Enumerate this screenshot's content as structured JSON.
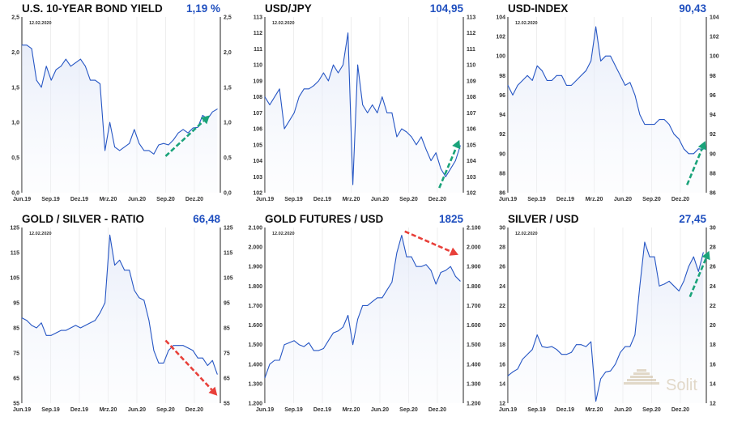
{
  "chart_data": [
    {
      "type": "line",
      "title": "U.S. 10-YEAR BOND YIELD",
      "value_label": "1,19 %",
      "date_label": "12.02.2020",
      "ylim": [
        0,
        2.5
      ],
      "ystep": 0.5,
      "ydecimals": 1,
      "ythousands": false,
      "xticks": [
        {
          "m": 0,
          "label": "Jun.19"
        },
        {
          "m": 3,
          "label": "Sep.19"
        },
        {
          "m": 6,
          "label": "Dez.19"
        },
        {
          "m": 9,
          "label": "Mrz.20"
        },
        {
          "m": 12,
          "label": "Jun.20"
        },
        {
          "m": 15,
          "label": "Sep.20"
        },
        {
          "m": 18,
          "label": "Dez.20"
        }
      ],
      "values": [
        2.1,
        2.1,
        2.05,
        1.6,
        1.5,
        1.8,
        1.6,
        1.75,
        1.8,
        1.9,
        1.8,
        1.85,
        1.9,
        1.8,
        1.6,
        1.6,
        1.55,
        0.6,
        1.0,
        0.65,
        0.6,
        0.65,
        0.7,
        0.9,
        0.7,
        0.6,
        0.6,
        0.55,
        0.68,
        0.7,
        0.68,
        0.75,
        0.85,
        0.9,
        0.85,
        0.92,
        0.93,
        1.1,
        1.05,
        1.15,
        1.19
      ],
      "arrow": {
        "color": "#1aa37a",
        "from": [
          15,
          0.52
        ],
        "to": [
          19.6,
          1.1
        ]
      }
    },
    {
      "type": "line",
      "title": "USD/JPY",
      "value_label": "104,95",
      "date_label": "12.02.2020",
      "ylim": [
        102,
        113
      ],
      "ystep": 1,
      "ydecimals": 0,
      "ythousands": false,
      "xticks": [
        {
          "m": 0,
          "label": "Jun.19"
        },
        {
          "m": 3,
          "label": "Sep.19"
        },
        {
          "m": 6,
          "label": "Dez.19"
        },
        {
          "m": 9,
          "label": "Mrz.20"
        },
        {
          "m": 12,
          "label": "Jun.20"
        },
        {
          "m": 15,
          "label": "Sep.20"
        },
        {
          "m": 18,
          "label": "Dez.20"
        }
      ],
      "values": [
        108,
        107.5,
        108,
        108.5,
        106,
        106.5,
        107,
        108,
        108.5,
        108.5,
        108.7,
        109,
        109.5,
        109,
        110,
        109.5,
        110,
        112,
        102.5,
        110,
        107.5,
        107,
        107.5,
        107,
        108,
        107,
        107,
        105.5,
        106,
        105.8,
        105.5,
        105,
        105.5,
        104.7,
        104,
        104.5,
        103.5,
        103,
        103.5,
        104,
        104.95
      ],
      "arrow": {
        "color": "#1aa37a",
        "from": [
          18.2,
          102.3
        ],
        "to": [
          20.3,
          105.3
        ]
      }
    },
    {
      "type": "line",
      "title": "USD-INDEX",
      "value_label": "90,43",
      "date_label": "12.02.2020",
      "ylim": [
        86,
        104
      ],
      "ystep": 2,
      "ydecimals": 0,
      "ythousands": false,
      "xticks": [
        {
          "m": 0,
          "label": "Jun.19"
        },
        {
          "m": 3,
          "label": "Sep.19"
        },
        {
          "m": 6,
          "label": "Dez.19"
        },
        {
          "m": 9,
          "label": "Mrz.20"
        },
        {
          "m": 12,
          "label": "Jun.20"
        },
        {
          "m": 15,
          "label": "Sep.20"
        },
        {
          "m": 18,
          "label": "Dez.20"
        }
      ],
      "values": [
        97,
        96,
        97,
        97.5,
        98,
        97.5,
        99,
        98.5,
        97.5,
        97.5,
        98,
        98,
        97,
        97,
        97.5,
        98,
        98.5,
        99.5,
        103,
        99.5,
        100,
        100,
        99,
        98,
        97,
        97.3,
        96,
        94,
        93,
        93,
        93,
        93.5,
        93.5,
        93,
        92,
        91.5,
        90.5,
        90,
        90,
        90.5,
        90.43
      ],
      "arrow": {
        "color": "#1aa37a",
        "from": [
          18.7,
          86.8
        ],
        "to": [
          20.6,
          91.3
        ]
      }
    },
    {
      "type": "line",
      "title": "GOLD / SILVER - RATIO",
      "value_label": "66,48",
      "date_label": "12.02.2020",
      "ylim": [
        55,
        125
      ],
      "ystep": 10,
      "ydecimals": 0,
      "ythousands": false,
      "xticks": [
        {
          "m": 0,
          "label": "Jun.19"
        },
        {
          "m": 3,
          "label": "Sep.19"
        },
        {
          "m": 6,
          "label": "Dez.19"
        },
        {
          "m": 9,
          "label": "Mrz.20"
        },
        {
          "m": 12,
          "label": "Jun.20"
        },
        {
          "m": 15,
          "label": "Sep.20"
        },
        {
          "m": 18,
          "label": "Dez.20"
        }
      ],
      "values": [
        89,
        88,
        86,
        85,
        87,
        82,
        82,
        83,
        84,
        84,
        85,
        86,
        85,
        86,
        87,
        88,
        91,
        95,
        122,
        110,
        112,
        108,
        108,
        100,
        97,
        96,
        88,
        76,
        71,
        71,
        76,
        78,
        78,
        78,
        77,
        76,
        73,
        73,
        70,
        72,
        66.48
      ],
      "arrow": {
        "color": "#e8403a",
        "from": [
          15,
          80
        ],
        "to": [
          20.4,
          58
        ]
      }
    },
    {
      "type": "line",
      "title": "GOLD FUTURES / USD",
      "value_label": "1825",
      "date_label": "12.02.2020",
      "ylim": [
        1200,
        2100
      ],
      "ystep": 100,
      "ydecimals": 0,
      "ythousands": true,
      "xticks": [
        {
          "m": 0,
          "label": "Jun.19"
        },
        {
          "m": 3,
          "label": "Sep.19"
        },
        {
          "m": 6,
          "label": "Dez.19"
        },
        {
          "m": 9,
          "label": "Mrz.20"
        },
        {
          "m": 12,
          "label": "Jun.20"
        },
        {
          "m": 15,
          "label": "Sep.20"
        },
        {
          "m": 18,
          "label": "Dez.20"
        }
      ],
      "values": [
        1330,
        1400,
        1420,
        1420,
        1500,
        1510,
        1520,
        1500,
        1490,
        1510,
        1470,
        1470,
        1480,
        1520,
        1560,
        1570,
        1590,
        1650,
        1500,
        1630,
        1700,
        1700,
        1720,
        1740,
        1740,
        1780,
        1820,
        1970,
        2060,
        1950,
        1950,
        1900,
        1900,
        1910,
        1880,
        1810,
        1870,
        1880,
        1900,
        1850,
        1825
      ],
      "arrow": {
        "color": "#e8403a",
        "from": [
          14.6,
          2080
        ],
        "to": [
          20.2,
          1960
        ]
      }
    },
    {
      "type": "line",
      "title": "SILVER / USD",
      "value_label": "27,45",
      "date_label": "12.02.2020",
      "ylim": [
        12,
        30
      ],
      "ystep": 2,
      "ydecimals": 0,
      "ythousands": false,
      "xticks": [
        {
          "m": 0,
          "label": "Jun.19"
        },
        {
          "m": 3,
          "label": "Sep.19"
        },
        {
          "m": 6,
          "label": "Dez.19"
        },
        {
          "m": 9,
          "label": "Mrz.20"
        },
        {
          "m": 12,
          "label": "Jun.20"
        },
        {
          "m": 15,
          "label": "Sep.20"
        },
        {
          "m": 18,
          "label": "Dez.20"
        }
      ],
      "values": [
        14.8,
        15.2,
        15.5,
        16.5,
        17,
        17.5,
        19,
        17.8,
        17.7,
        17.8,
        17.5,
        17,
        17,
        17.2,
        18,
        18,
        17.8,
        18.3,
        12.2,
        14.5,
        15.2,
        15.3,
        16,
        17.2,
        17.8,
        17.8,
        19,
        24,
        28.5,
        27,
        27,
        24,
        24.2,
        24.5,
        24,
        23.5,
        24.5,
        26,
        27,
        25.5,
        27.45
      ],
      "arrow": {
        "color": "#1aa37a",
        "from": [
          19,
          22.9
        ],
        "to": [
          21,
          27.6
        ]
      },
      "watermark": "Solit"
    }
  ]
}
